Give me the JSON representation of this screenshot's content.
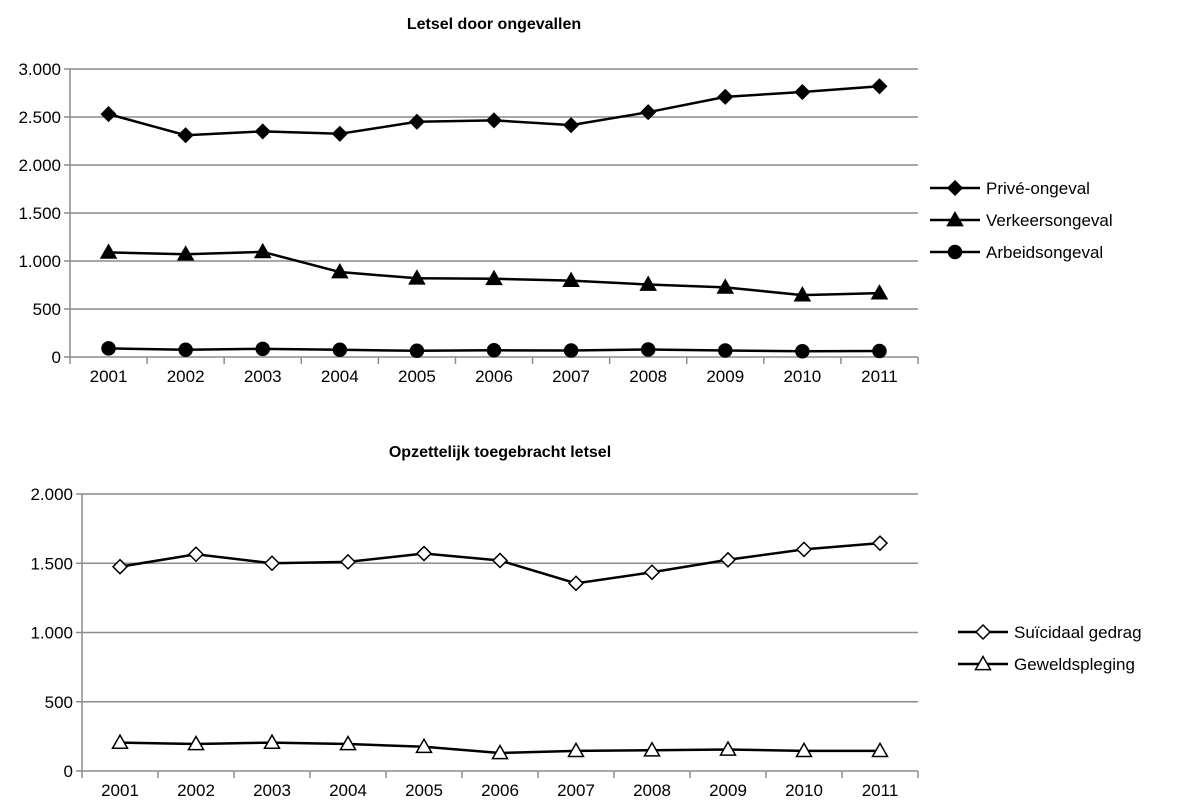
{
  "chart_data": [
    {
      "type": "line",
      "title": "Letsel door ongevallen",
      "categories": [
        "2001",
        "2002",
        "2003",
        "2004",
        "2005",
        "2006",
        "2007",
        "2008",
        "2009",
        "2010",
        "2011"
      ],
      "ylim": [
        0,
        3000
      ],
      "yticks": [
        0,
        500,
        1000,
        1500,
        2000,
        2500,
        3000
      ],
      "ytick_labels": [
        "0",
        "500",
        "1.000",
        "1.500",
        "2.000",
        "2.500",
        "3.000"
      ],
      "grid": true,
      "legend": "right",
      "series": [
        {
          "name": "Privé-ongeval",
          "marker": "diamond",
          "fill": "#000000",
          "values": [
            2530,
            2310,
            2350,
            2325,
            2450,
            2465,
            2415,
            2550,
            2710,
            2760,
            2820
          ]
        },
        {
          "name": "Verkeersongeval",
          "marker": "triangle",
          "fill": "#000000",
          "values": [
            1090,
            1070,
            1095,
            885,
            820,
            815,
            795,
            755,
            725,
            645,
            665
          ]
        },
        {
          "name": "Arbeidsongeval",
          "marker": "circle",
          "fill": "#000000",
          "values": [
            90,
            75,
            85,
            75,
            65,
            70,
            68,
            78,
            68,
            60,
            62
          ]
        }
      ]
    },
    {
      "type": "line",
      "title": "Opzettelijk toegebracht letsel",
      "categories": [
        "2001",
        "2002",
        "2003",
        "2004",
        "2005",
        "2006",
        "2007",
        "2008",
        "2009",
        "2010",
        "2011"
      ],
      "ylim": [
        0,
        2000
      ],
      "yticks": [
        0,
        500,
        1000,
        1500,
        2000
      ],
      "ytick_labels": [
        "0",
        "500",
        "1.000",
        "1.500",
        "2.000"
      ],
      "grid": true,
      "legend": "right",
      "series": [
        {
          "name": "Suïcidaal gedrag",
          "marker": "diamond",
          "fill": "#ffffff",
          "values": [
            1475,
            1565,
            1500,
            1510,
            1570,
            1520,
            1355,
            1435,
            1525,
            1600,
            1645
          ]
        },
        {
          "name": "Geweldspleging",
          "marker": "triangle",
          "fill": "#ffffff",
          "values": [
            205,
            195,
            205,
            195,
            175,
            130,
            145,
            150,
            155,
            145,
            145
          ]
        }
      ]
    }
  ]
}
